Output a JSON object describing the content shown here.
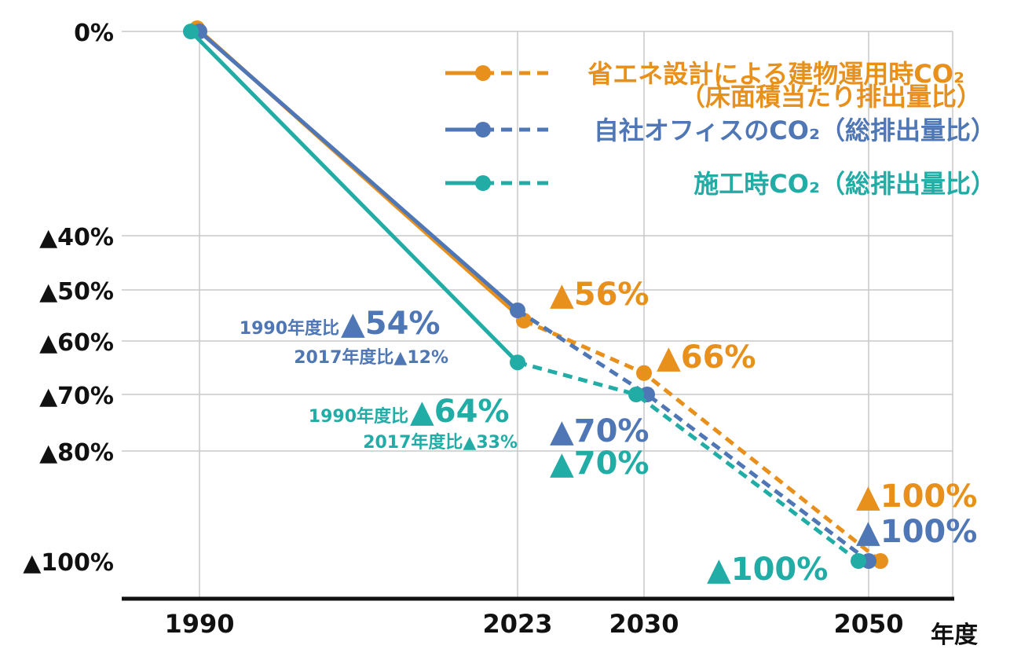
{
  "chart_data": {
    "type": "line",
    "title": "",
    "xlabel": "年度",
    "ylabel": "",
    "x_ticks": [
      1990,
      2023,
      2030,
      2050
    ],
    "x_tick_labels": [
      "1990",
      "2023",
      "2030",
      "2050"
    ],
    "y_ticks": [
      0,
      -40,
      -50,
      -60,
      -70,
      -80,
      -100
    ],
    "y_tick_labels": [
      "0%",
      "▲40%",
      "▲50%",
      "▲60%",
      "▲70%",
      "▲80%",
      "▲100%"
    ],
    "ylim": [
      -100,
      0
    ],
    "grid": true,
    "legend_position": "top-right",
    "note": "solid line = actual, dashed line = target",
    "series": [
      {
        "name": "省エネ設計による建物運用時CO₂",
        "name_line2": "（床面積当たり排出量比）",
        "color": "#E8901C",
        "x": [
          1990,
          2023,
          2030,
          2050
        ],
        "values": [
          0,
          -56,
          -66,
          -100
        ],
        "labels": [
          "",
          "▲56%",
          "▲66%",
          "▲100%"
        ]
      },
      {
        "name": "自社オフィスのCO₂（総排出量比）",
        "color": "#4F77B5",
        "x": [
          1990,
          2023,
          2030,
          2050
        ],
        "values": [
          0,
          -54,
          -70,
          -100
        ],
        "labels": [
          "",
          "",
          "▲70%",
          "▲100%"
        ]
      },
      {
        "name": "施工時CO₂（総排出量比）",
        "color": "#22ACA6",
        "x": [
          1990,
          2023,
          2030,
          2050
        ],
        "values": [
          0,
          -64,
          -70,
          -100
        ],
        "labels": [
          "",
          "",
          "▲70%",
          "▲100%"
        ]
      }
    ],
    "annotations": {
      "blue_2023_prefix": "1990年度比",
      "blue_2023_main": "▲54%",
      "blue_2023_sub": "2017年度比▲12%",
      "teal_2023_prefix": "1990年度比",
      "teal_2023_main": "▲64%",
      "teal_2023_sub": "2017年度比▲33%"
    }
  }
}
